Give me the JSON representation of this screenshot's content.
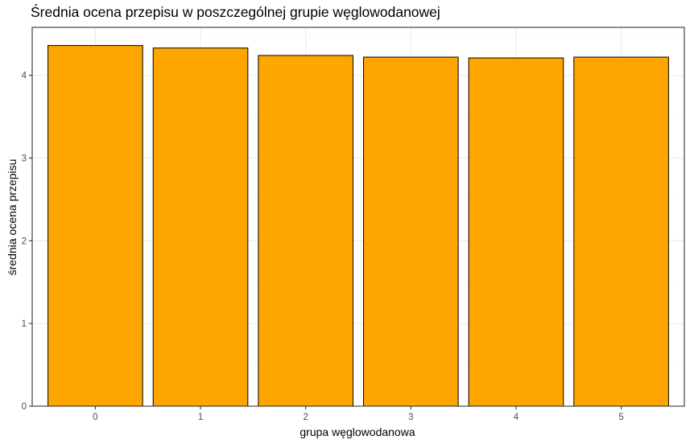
{
  "chart_data": {
    "type": "bar",
    "title": "Średnia ocena przepisu w poszczególnej grupie węglowodanowej",
    "xlabel": "grupa węglowodanowa",
    "ylabel": "średnia ocena przepisu",
    "categories": [
      "0",
      "1",
      "2",
      "3",
      "4",
      "5"
    ],
    "values": [
      4.36,
      4.33,
      4.24,
      4.22,
      4.21,
      4.22
    ],
    "ylim": [
      0,
      4.58
    ],
    "yticks": [
      "0",
      "1",
      "2",
      "3",
      "4"
    ],
    "grid": true,
    "bar_color": "#FFA500",
    "bar_border_color": "#000000",
    "panel_border_color": "#333333",
    "grid_major_color": "#ebebeb",
    "grid_minor_color": "#f5f5f5"
  }
}
